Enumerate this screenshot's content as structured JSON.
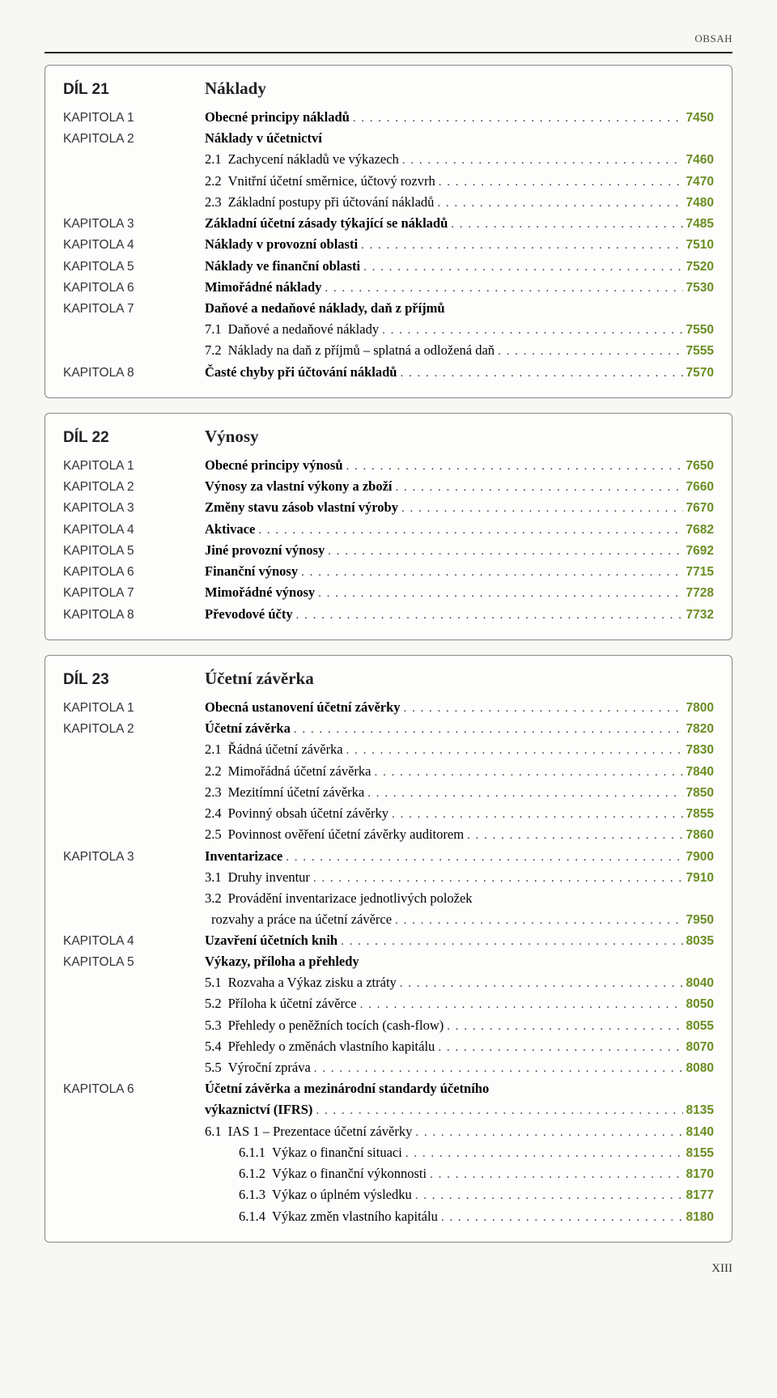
{
  "header": "OBSAH",
  "pageFooter": "XIII",
  "colors": {
    "accent": "#6b8e23"
  },
  "sections": [
    {
      "dil": "DÍL 21",
      "title": "Náklady",
      "rows": [
        {
          "chapter": "KAPITOLA 1",
          "label": "Obecné principy nákladů",
          "page": "7450",
          "bold": true
        },
        {
          "chapter": "KAPITOLA 2",
          "label": "Náklady v účetnictví",
          "bold": true,
          "nopg": true
        },
        {
          "chapter": "",
          "sub": "2.1",
          "label": "Zachycení nákladů ve výkazech",
          "page": "7460"
        },
        {
          "chapter": "",
          "sub": "2.2",
          "label": "Vnitřní účetní směrnice, účtový rozvrh",
          "page": "7470"
        },
        {
          "chapter": "",
          "sub": "2.3",
          "label": "Základní postupy při účtování nákladů",
          "page": "7480"
        },
        {
          "chapter": "KAPITOLA 3",
          "label": "Základní účetní zásady týkající se nákladů",
          "page": "7485",
          "bold": true
        },
        {
          "chapter": "KAPITOLA 4",
          "label": "Náklady v provozní oblasti",
          "page": "7510",
          "bold": true
        },
        {
          "chapter": "KAPITOLA 5",
          "label": "Náklady ve finanční oblasti",
          "page": "7520",
          "bold": true
        },
        {
          "chapter": "KAPITOLA 6",
          "label": "Mimořádné náklady",
          "page": "7530",
          "bold": true
        },
        {
          "chapter": "KAPITOLA 7",
          "label": "Daňové a nedaňové náklady, daň z příjmů",
          "bold": true,
          "nopg": true
        },
        {
          "chapter": "",
          "sub": "7.1",
          "label": "Daňové a nedaňové náklady",
          "page": "7550"
        },
        {
          "chapter": "",
          "sub": "7.2",
          "label": "Náklady na daň z příjmů – splatná a odložená daň",
          "page": "7555"
        },
        {
          "chapter": "KAPITOLA 8",
          "label": "Časté chyby při účtování nákladů",
          "page": "7570",
          "bold": true
        }
      ]
    },
    {
      "dil": "DÍL 22",
      "title": "Výnosy",
      "rows": [
        {
          "chapter": "KAPITOLA 1",
          "label": "Obecné principy výnosů",
          "page": "7650",
          "bold": true
        },
        {
          "chapter": "KAPITOLA 2",
          "label": "Výnosy za vlastní výkony a zboží",
          "page": "7660",
          "bold": true
        },
        {
          "chapter": "KAPITOLA 3",
          "label": "Změny stavu zásob vlastní výroby",
          "page": "7670",
          "bold": true
        },
        {
          "chapter": "KAPITOLA 4",
          "label": "Aktivace",
          "page": "7682",
          "bold": true
        },
        {
          "chapter": "KAPITOLA 5",
          "label": "Jiné provozní výnosy",
          "page": "7692",
          "bold": true
        },
        {
          "chapter": "KAPITOLA 6",
          "label": "Finanční výnosy",
          "page": "7715",
          "bold": true
        },
        {
          "chapter": "KAPITOLA 7",
          "label": "Mimořádné výnosy",
          "page": "7728",
          "bold": true
        },
        {
          "chapter": "KAPITOLA 8",
          "label": "Převodové účty",
          "page": "7732",
          "bold": true
        }
      ]
    },
    {
      "dil": "DÍL 23",
      "title": "Účetní závěrka",
      "rows": [
        {
          "chapter": "KAPITOLA 1",
          "label": "Obecná ustanovení účetní závěrky",
          "page": "7800",
          "bold": true
        },
        {
          "chapter": "KAPITOLA 2",
          "label": "Účetní závěrka",
          "page": "7820",
          "bold": true
        },
        {
          "chapter": "",
          "sub": "2.1",
          "label": "Řádná účetní závěrka",
          "page": "7830"
        },
        {
          "chapter": "",
          "sub": "2.2",
          "label": "Mimořádná účetní závěrka",
          "page": "7840"
        },
        {
          "chapter": "",
          "sub": "2.3",
          "label": "Mezitímní účetní závěrka",
          "page": "7850"
        },
        {
          "chapter": "",
          "sub": "2.4",
          "label": "Povinný obsah účetní závěrky",
          "page": "7855"
        },
        {
          "chapter": "",
          "sub": "2.5",
          "label": "Povinnost ověření účetní závěrky auditorem",
          "page": "7860"
        },
        {
          "chapter": "KAPITOLA 3",
          "label": "Inventarizace",
          "page": "7900",
          "bold": true
        },
        {
          "chapter": "",
          "sub": "3.1",
          "label": "Druhy inventur",
          "page": "7910"
        },
        {
          "chapter": "",
          "sub": "3.2",
          "label": "Provádění inventarizace jednotlivých položek",
          "nopg": true
        },
        {
          "chapter": "",
          "sub": "",
          "label": "rozvahy a práce na účetní závěrce",
          "page": "7950"
        },
        {
          "chapter": "KAPITOLA 4",
          "label": "Uzavření účetních knih",
          "page": "8035",
          "bold": true
        },
        {
          "chapter": "KAPITOLA 5",
          "label": "Výkazy, příloha a přehledy",
          "bold": true,
          "nopg": true
        },
        {
          "chapter": "",
          "sub": "5.1",
          "label": "Rozvaha a Výkaz zisku a ztráty",
          "page": "8040"
        },
        {
          "chapter": "",
          "sub": "5.2",
          "label": "Příloha k účetní závěrce",
          "page": "8050"
        },
        {
          "chapter": "",
          "sub": "5.3",
          "label": "Přehledy o peněžních tocích (cash-flow)",
          "page": "8055"
        },
        {
          "chapter": "",
          "sub": "5.4",
          "label": "Přehledy o změnách vlastního kapitálu",
          "page": "8070"
        },
        {
          "chapter": "",
          "sub": "5.5",
          "label": "Výroční zpráva",
          "page": "8080"
        },
        {
          "chapter": "KAPITOLA 6",
          "label": "Účetní závěrka a mezinárodní standardy účetního",
          "bold": true,
          "nopg": true
        },
        {
          "chapter": "",
          "label": "výkaznictví (IFRS)",
          "page": "8135",
          "bold": true
        },
        {
          "chapter": "",
          "sub": "6.1",
          "label": "IAS 1 – Prezentace účetní závěrky",
          "page": "8140"
        },
        {
          "chapter": "",
          "sub": "6.1.1",
          "label": "Výkaz o finanční situaci",
          "page": "8155",
          "indent": 2
        },
        {
          "chapter": "",
          "sub": "6.1.2",
          "label": "Výkaz o finanční výkonnosti",
          "page": "8170",
          "indent": 2
        },
        {
          "chapter": "",
          "sub": "6.1.3",
          "label": "Výkaz o úplném výsledku",
          "page": "8177",
          "indent": 2
        },
        {
          "chapter": "",
          "sub": "6.1.4",
          "label": "Výkaz změn vlastního kapitálu",
          "page": "8180",
          "indent": 2
        }
      ]
    }
  ]
}
